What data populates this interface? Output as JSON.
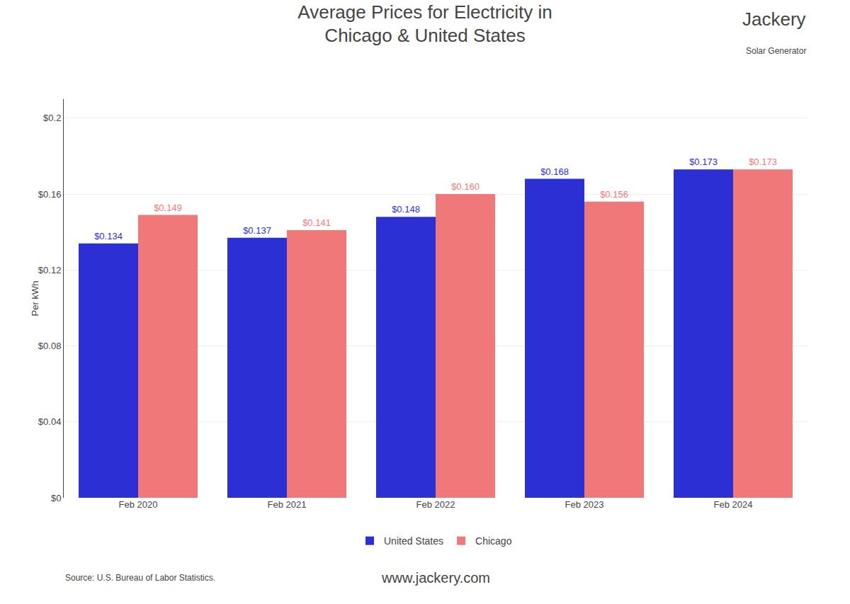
{
  "chart_data": {
    "type": "bar",
    "title": "Average Prices for Electricity in\nChicago & United States",
    "ylabel": "Per kWh",
    "categories": [
      "Feb 2020",
      "Feb 2021",
      "Feb 2022",
      "Feb 2023",
      "Feb 2024"
    ],
    "series": [
      {
        "name": "United States",
        "color": "#2b2fd4",
        "values": [
          0.134,
          0.137,
          0.148,
          0.168,
          0.173
        ],
        "value_labels": [
          "$0.134",
          "$0.137",
          "$0.148",
          "$0.168",
          "$0.173"
        ]
      },
      {
        "name": "Chicago",
        "color": "#f07878",
        "values": [
          0.149,
          0.141,
          0.16,
          0.156,
          0.173
        ],
        "value_labels": [
          "$0.149",
          "$0.141",
          "$0.160",
          "$0.156",
          "$0.173"
        ]
      }
    ],
    "ylim": [
      0,
      0.21
    ],
    "yticks": [
      {
        "value": 0,
        "label": "$0"
      },
      {
        "value": 0.04,
        "label": "$0.04"
      },
      {
        "value": 0.08,
        "label": "$0.08"
      },
      {
        "value": 0.12,
        "label": "$0.12"
      },
      {
        "value": 0.16,
        "label": "$0.16"
      },
      {
        "value": 0.2,
        "label": "$0.2"
      }
    ],
    "grid": true,
    "legend": "bottom",
    "data_labels": true,
    "annotations": [
      "Source: U.S. Bureau of Labor Statistics.",
      "www.jackery.com",
      "Jackery",
      "Solar Generator"
    ]
  }
}
